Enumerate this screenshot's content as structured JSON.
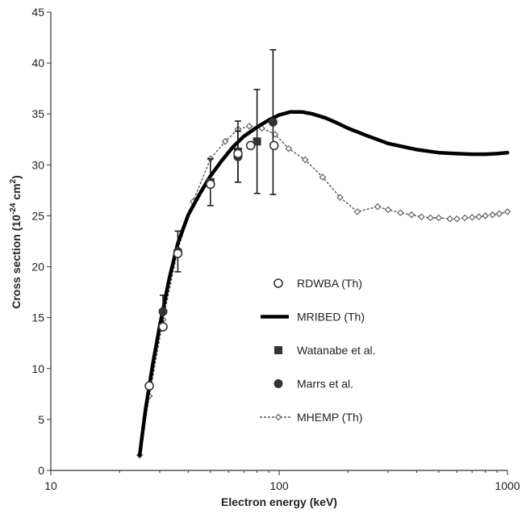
{
  "chart_data": {
    "type": "scatter",
    "xlabel": "Electron energy  (keV)",
    "ylabel": "Cross section (10^-24 cm^2)",
    "ylabel_parts": {
      "prefix": "Cross section (10",
      "exp1": "-24",
      "mid": " cm",
      "exp2": "2",
      "suffix": ")"
    },
    "x_scale": "log",
    "xlim": [
      10,
      1000
    ],
    "ylim": [
      0,
      45
    ],
    "x_ticks": [
      10,
      100,
      1000
    ],
    "x_tick_labels": [
      "10",
      "100",
      "1000"
    ],
    "y_ticks": [
      0,
      5,
      10,
      15,
      20,
      25,
      30,
      35,
      40,
      45
    ],
    "y_tick_labels": [
      "0",
      "5",
      "10",
      "15",
      "20",
      "25",
      "30",
      "35",
      "40",
      "45"
    ],
    "grid": false,
    "legend_position": "center-right",
    "series": [
      {
        "name": "RDWBA (Th)",
        "kind": "open-circle",
        "color": "#333333",
        "x": [
          27,
          31,
          36,
          50,
          66,
          75,
          95
        ],
        "y": [
          8.3,
          14.1,
          21.3,
          28.1,
          31.1,
          31.9,
          31.9
        ]
      },
      {
        "name": "MRIBED (Th)",
        "kind": "thick-line",
        "color": "#000000",
        "x": [
          24.5,
          26,
          28,
          30,
          33,
          36,
          40,
          45,
          50,
          56,
          63,
          70,
          80,
          90,
          100,
          112,
          126,
          140,
          160,
          180,
          200,
          240,
          300,
          400,
          500,
          600,
          700,
          800,
          900,
          1000
        ],
        "y": [
          1.5,
          6,
          10.5,
          14.2,
          18.8,
          22.3,
          25.1,
          27.2,
          28.9,
          30.4,
          31.8,
          32.8,
          33.7,
          34.4,
          34.9,
          35.2,
          35.2,
          35,
          34.6,
          34.1,
          33.6,
          32.9,
          32.1,
          31.5,
          31.2,
          31.1,
          31.05,
          31.05,
          31.1,
          31.2
        ]
      },
      {
        "name": "Watanabe et al.",
        "kind": "filled-square",
        "color": "#333333",
        "x": [
          50,
          66,
          80
        ],
        "y": [
          28.3,
          31.3,
          32.3
        ],
        "err": [
          2.3,
          3.0,
          5.1
        ]
      },
      {
        "name": "Marrs et al.",
        "kind": "filled-circle",
        "color": "#333333",
        "x": [
          31,
          36,
          66,
          94
        ],
        "y": [
          15.6,
          21.5,
          30.8,
          34.2
        ],
        "err": [
          1.6,
          2.0,
          2.5,
          7.1
        ]
      },
      {
        "name": "MHEMP (Th)",
        "kind": "dashed-diamond",
        "color": "#555555",
        "x": [
          24.5,
          27,
          31,
          36,
          42,
          50,
          58,
          66,
          74,
          84,
          96,
          110,
          130,
          155,
          185,
          220,
          270,
          300,
          340,
          380,
          420,
          460,
          500,
          560,
          600,
          650,
          700,
          750,
          800,
          860,
          920,
          1000
        ],
        "y": [
          1.5,
          7.3,
          14.8,
          21.7,
          26.4,
          30.6,
          32.3,
          33.5,
          33.8,
          33.6,
          33,
          31.6,
          30.5,
          28.8,
          26.8,
          25.4,
          25.9,
          25.6,
          25.3,
          25.1,
          24.9,
          24.8,
          24.8,
          24.7,
          24.7,
          24.8,
          24.85,
          24.9,
          25,
          25.1,
          25.2,
          25.4
        ]
      }
    ]
  }
}
